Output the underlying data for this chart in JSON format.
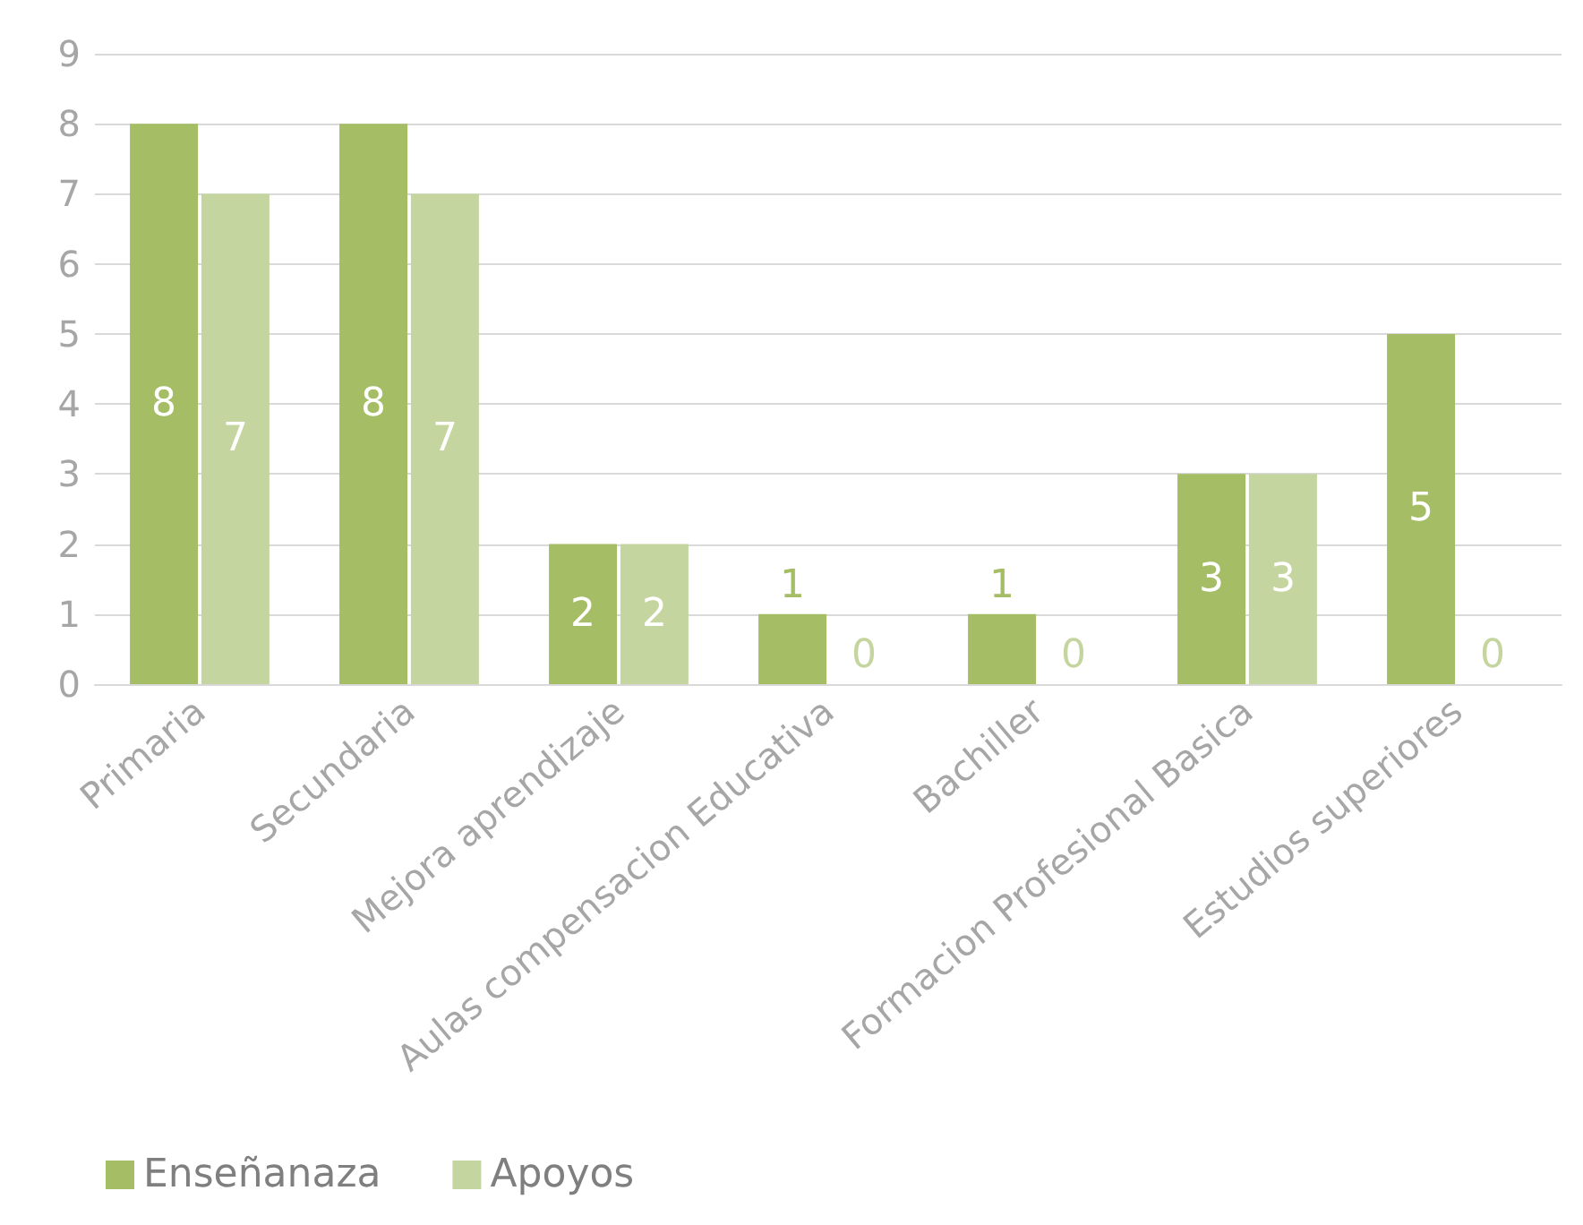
{
  "chart_data": {
    "type": "bar",
    "categories": [
      "Primaria",
      "Secundaria",
      "Mejora aprendizaje",
      "Aulas compensacion Educativa",
      "Bachiller",
      "Formacion Profesional Basica",
      "Estudios superiores"
    ],
    "series": [
      {
        "name": "Enseñanaza",
        "color": "#a5bd64",
        "values": [
          8,
          8,
          2,
          1,
          1,
          3,
          5
        ]
      },
      {
        "name": "Apoyos",
        "color": "#c5d5a0",
        "values": [
          7,
          7,
          2,
          0,
          0,
          3,
          0
        ]
      }
    ],
    "ylim": [
      0,
      9
    ],
    "yticks": [
      0,
      1,
      2,
      3,
      4,
      5,
      6,
      7,
      8,
      9
    ],
    "grid": "y",
    "legend": "bottom left",
    "data_labels": true
  }
}
